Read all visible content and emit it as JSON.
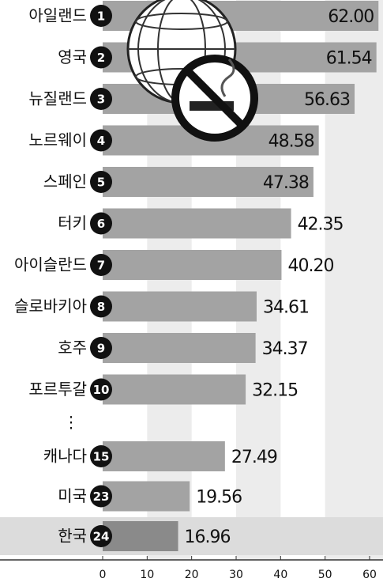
{
  "chart_data": {
    "type": "bar",
    "orientation": "horizontal",
    "categories": [
      "아일랜드",
      "영국",
      "뉴질랜드",
      "노르웨이",
      "스페인",
      "터키",
      "아이슬란드",
      "슬로바키아",
      "호주",
      "포르투갈",
      "캐나다",
      "미국",
      "한국"
    ],
    "ranks": [
      1,
      2,
      3,
      4,
      5,
      6,
      7,
      8,
      9,
      10,
      15,
      23,
      24
    ],
    "values": [
      62.0,
      61.54,
      56.63,
      48.58,
      47.38,
      42.35,
      40.2,
      34.61,
      34.37,
      32.15,
      27.49,
      19.56,
      16.96
    ],
    "value_labels": [
      "62.00",
      "61.54",
      "56.63",
      "48.58",
      "47.38",
      "42.35",
      "40.20",
      "34.61",
      "34.37",
      "32.15",
      "27.49",
      "19.56",
      "16.96"
    ],
    "colors": [
      "#a3a3a3",
      "#a3a3a3",
      "#a3a3a3",
      "#a3a3a3",
      "#a3a3a3",
      "#a3a3a3",
      "#a3a3a3",
      "#a3a3a3",
      "#a3a3a3",
      "#a3a3a3",
      "#a3a3a3",
      "#a3a3a3",
      "#8a8a8a"
    ],
    "ellipsis": "⋮",
    "xlim": [
      0,
      62
    ],
    "xticks": [
      0,
      10,
      20,
      30,
      40,
      50,
      60
    ]
  }
}
